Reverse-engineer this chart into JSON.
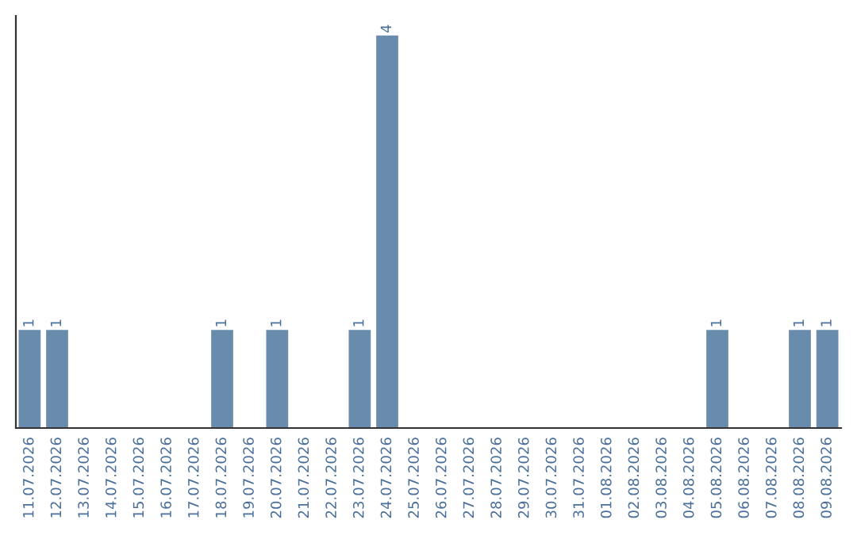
{
  "chart_data": {
    "type": "bar",
    "categories": [
      "11.07.2026",
      "12.07.2026",
      "13.07.2026",
      "14.07.2026",
      "15.07.2026",
      "16.07.2026",
      "17.07.2026",
      "18.07.2026",
      "19.07.2026",
      "20.07.2026",
      "21.07.2026",
      "22.07.2026",
      "23.07.2026",
      "24.07.2026",
      "25.07.2026",
      "26.07.2026",
      "27.07.2026",
      "28.07.2026",
      "29.07.2026",
      "30.07.2026",
      "31.07.2026",
      "01.08.2026",
      "02.08.2026",
      "03.08.2026",
      "04.08.2026",
      "05.08.2026",
      "06.08.2026",
      "07.08.2026",
      "08.08.2026",
      "09.08.2026"
    ],
    "values": [
      1,
      1,
      0,
      0,
      0,
      0,
      0,
      1,
      0,
      1,
      0,
      0,
      1,
      4,
      0,
      0,
      0,
      0,
      0,
      0,
      0,
      0,
      0,
      0,
      0,
      1,
      0,
      0,
      1,
      1
    ],
    "value_labels": [
      "1",
      "1",
      null,
      null,
      null,
      null,
      null,
      "1",
      null,
      "1",
      null,
      null,
      "1",
      "4",
      null,
      null,
      null,
      null,
      null,
      null,
      null,
      null,
      null,
      null,
      null,
      "1",
      null,
      null,
      "1",
      "1"
    ],
    "color": "#6a8cac",
    "grid": false,
    "tick_labels": "x"
  }
}
